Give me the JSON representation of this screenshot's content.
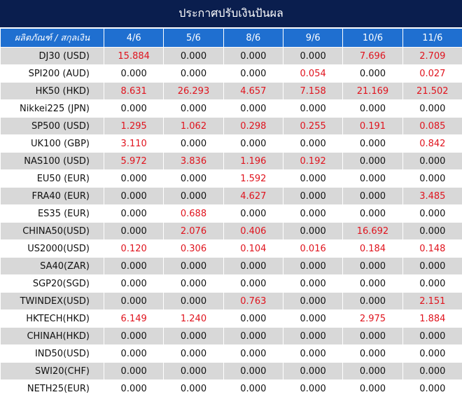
{
  "title": "ประกาศปรับเงินปันผล",
  "header": {
    "first_col": "ผลิตภัณฑ์ / สกุลเงิน",
    "dates": [
      "4/6",
      "5/6",
      "8/6",
      "9/6",
      "10/6",
      "11/6"
    ]
  },
  "rows": [
    {
      "name": "DJ30 (USD)",
      "values": [
        "15.884",
        "0.000",
        "0.000",
        "0.000",
        "7.696",
        "2.709"
      ]
    },
    {
      "name": "SPI200 (AUD)",
      "values": [
        "0.000",
        "0.000",
        "0.000",
        "0.054",
        "0.000",
        "0.027"
      ]
    },
    {
      "name": "HK50 (HKD)",
      "values": [
        "8.631",
        "26.293",
        "4.657",
        "7.158",
        "21.169",
        "21.502"
      ]
    },
    {
      "name": "Nikkei225 (JPN)",
      "values": [
        "0.000",
        "0.000",
        "0.000",
        "0.000",
        "0.000",
        "0.000"
      ]
    },
    {
      "name": "SP500 (USD)",
      "values": [
        "1.295",
        "1.062",
        "0.298",
        "0.255",
        "0.191",
        "0.085"
      ]
    },
    {
      "name": "UK100 (GBP)",
      "values": [
        "3.110",
        "0.000",
        "0.000",
        "0.000",
        "0.000",
        "0.842"
      ]
    },
    {
      "name": "NAS100 (USD)",
      "values": [
        "5.972",
        "3.836",
        "1.196",
        "0.192",
        "0.000",
        "0.000"
      ]
    },
    {
      "name": "EU50 (EUR)",
      "values": [
        "0.000",
        "0.000",
        "1.592",
        "0.000",
        "0.000",
        "0.000"
      ]
    },
    {
      "name": "FRA40 (EUR)",
      "values": [
        "0.000",
        "0.000",
        "4.627",
        "0.000",
        "0.000",
        "3.485"
      ]
    },
    {
      "name": "ES35 (EUR)",
      "values": [
        "0.000",
        "0.688",
        "0.000",
        "0.000",
        "0.000",
        "0.000"
      ]
    },
    {
      "name": "CHINA50(USD)",
      "values": [
        "0.000",
        "2.076",
        "0.406",
        "0.000",
        "16.692",
        "0.000"
      ]
    },
    {
      "name": "US2000(USD)",
      "values": [
        "0.120",
        "0.306",
        "0.104",
        "0.016",
        "0.184",
        "0.148"
      ]
    },
    {
      "name": "SA40(ZAR)",
      "values": [
        "0.000",
        "0.000",
        "0.000",
        "0.000",
        "0.000",
        "0.000"
      ]
    },
    {
      "name": "SGP20(SGD)",
      "values": [
        "0.000",
        "0.000",
        "0.000",
        "0.000",
        "0.000",
        "0.000"
      ]
    },
    {
      "name": "TWINDEX(USD)",
      "values": [
        "0.000",
        "0.000",
        "0.763",
        "0.000",
        "0.000",
        "2.151"
      ]
    },
    {
      "name": "HKTECH(HKD)",
      "values": [
        "6.149",
        "1.240",
        "0.000",
        "0.000",
        "2.975",
        "1.884"
      ]
    },
    {
      "name": "CHINAH(HKD)",
      "values": [
        "0.000",
        "0.000",
        "0.000",
        "0.000",
        "0.000",
        "0.000"
      ]
    },
    {
      "name": "IND50(USD)",
      "values": [
        "0.000",
        "0.000",
        "0.000",
        "0.000",
        "0.000",
        "0.000"
      ]
    },
    {
      "name": "SWI20(CHF)",
      "values": [
        "0.000",
        "0.000",
        "0.000",
        "0.000",
        "0.000",
        "0.000"
      ]
    },
    {
      "name": "NETH25(EUR)",
      "values": [
        "0.000",
        "0.000",
        "0.000",
        "0.000",
        "0.000",
        "0.000"
      ]
    }
  ],
  "colors": {
    "title_bg": "#0a1e4e",
    "header_bg": "#1f6fd0",
    "stripe": "#d8d8d8",
    "positive_value": "#e0141e",
    "zero_value": "#111111"
  }
}
